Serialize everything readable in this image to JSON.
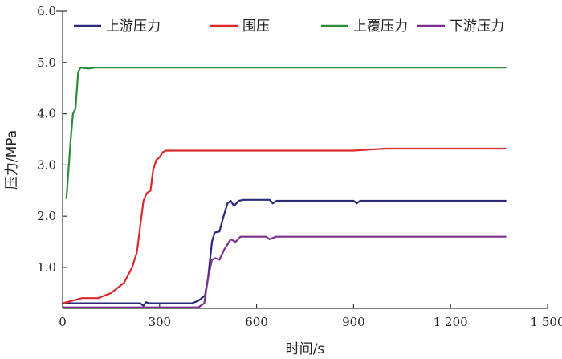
{
  "chart_data": {
    "type": "line",
    "xlabel": "时间/s",
    "ylabel": "压力/MPa",
    "xlim": [
      0,
      1500
    ],
    "ylim": [
      0.2,
      6.0
    ],
    "xticks": [
      0,
      300,
      600,
      900,
      1200,
      1500
    ],
    "xtick_labels": [
      "0",
      "300",
      "600",
      "900",
      "1 200",
      "1 500"
    ],
    "yticks": [
      1.0,
      2.0,
      3.0,
      4.0,
      5.0,
      6.0
    ],
    "ytick_labels": [
      "1.0",
      "2.0",
      "3.0",
      "4.0",
      "5.0",
      "6.0"
    ],
    "grid": false,
    "legend_position": "top",
    "series": [
      {
        "name": "上游压力",
        "color": "#2b2a7a",
        "points": [
          [
            0,
            0.3
          ],
          [
            240,
            0.3
          ],
          [
            250,
            0.25
          ],
          [
            258,
            0.32
          ],
          [
            268,
            0.3
          ],
          [
            400,
            0.3
          ],
          [
            420,
            0.35
          ],
          [
            440,
            0.45
          ],
          [
            450,
            0.8
          ],
          [
            462,
            1.5
          ],
          [
            470,
            1.68
          ],
          [
            485,
            1.7
          ],
          [
            498,
            2.0
          ],
          [
            510,
            2.25
          ],
          [
            520,
            2.3
          ],
          [
            530,
            2.2
          ],
          [
            545,
            2.3
          ],
          [
            560,
            2.32
          ],
          [
            640,
            2.32
          ],
          [
            650,
            2.25
          ],
          [
            662,
            2.3
          ],
          [
            900,
            2.3
          ],
          [
            910,
            2.25
          ],
          [
            920,
            2.3
          ],
          [
            1370,
            2.3
          ]
        ]
      },
      {
        "name": "围压",
        "color": "#d92b2b",
        "points": [
          [
            0,
            0.3
          ],
          [
            30,
            0.35
          ],
          [
            60,
            0.4
          ],
          [
            110,
            0.4
          ],
          [
            150,
            0.5
          ],
          [
            190,
            0.7
          ],
          [
            215,
            1.0
          ],
          [
            230,
            1.3
          ],
          [
            240,
            1.8
          ],
          [
            250,
            2.3
          ],
          [
            260,
            2.45
          ],
          [
            272,
            2.5
          ],
          [
            280,
            2.9
          ],
          [
            290,
            3.1
          ],
          [
            300,
            3.15
          ],
          [
            310,
            3.25
          ],
          [
            320,
            3.28
          ],
          [
            900,
            3.28
          ],
          [
            950,
            3.3
          ],
          [
            1000,
            3.32
          ],
          [
            1370,
            3.32
          ]
        ]
      },
      {
        "name": "上覆压力",
        "color": "#2d8c3c",
        "points": [
          [
            12,
            2.35
          ],
          [
            25,
            3.5
          ],
          [
            32,
            4.0
          ],
          [
            40,
            4.1
          ],
          [
            48,
            4.8
          ],
          [
            55,
            4.9
          ],
          [
            80,
            4.88
          ],
          [
            100,
            4.9
          ],
          [
            1370,
            4.9
          ]
        ]
      },
      {
        "name": "下游压力",
        "color": "#7d2e8e",
        "points": [
          [
            0,
            0.22
          ],
          [
            420,
            0.22
          ],
          [
            438,
            0.3
          ],
          [
            450,
            0.8
          ],
          [
            462,
            1.15
          ],
          [
            472,
            1.18
          ],
          [
            485,
            1.15
          ],
          [
            500,
            1.35
          ],
          [
            520,
            1.55
          ],
          [
            535,
            1.5
          ],
          [
            550,
            1.6
          ],
          [
            630,
            1.6
          ],
          [
            640,
            1.55
          ],
          [
            660,
            1.6
          ],
          [
            1370,
            1.6
          ]
        ]
      }
    ]
  }
}
